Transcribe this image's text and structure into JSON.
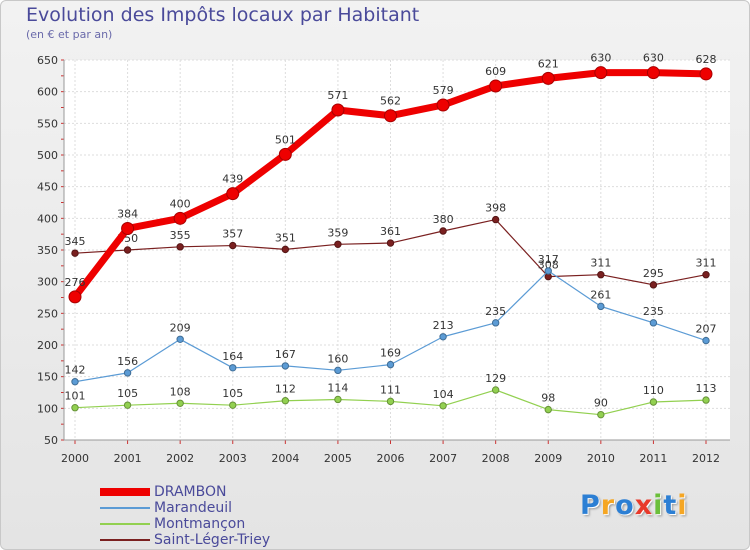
{
  "header": {
    "title": "Evolution des Impôts locaux par Habitant",
    "subtitle": "(en € et par an)"
  },
  "logo": {
    "text": "Proxiti",
    "letter_colors": [
      "#2c7fd4",
      "#f5a623",
      "#2c7fd4",
      "#e8392a",
      "#6bbf3a",
      "#2c7fd4",
      "#f5a623"
    ]
  },
  "chart_data": {
    "type": "line",
    "categories": [
      "2000",
      "2001",
      "2002",
      "2003",
      "2004",
      "2005",
      "2006",
      "2007",
      "2008",
      "2009",
      "2010",
      "2011",
      "2012"
    ],
    "ylim": [
      50,
      650
    ],
    "yticks": [
      50,
      100,
      150,
      200,
      250,
      300,
      350,
      400,
      450,
      500,
      550,
      600,
      650
    ],
    "grid": true,
    "legend_position": "bottom-left",
    "series": [
      {
        "name": "Saint-Léger-Triey",
        "color": "#7a2020",
        "emphasis": false,
        "values": [
          345,
          350,
          355,
          357,
          351,
          359,
          361,
          380,
          398,
          308,
          311,
          295,
          311
        ]
      },
      {
        "name": "Marandeuil",
        "color": "#5b9bd5",
        "emphasis": false,
        "values": [
          142,
          156,
          209,
          164,
          167,
          160,
          169,
          213,
          235,
          317,
          261,
          235,
          207
        ]
      },
      {
        "name": "Montmançon",
        "color": "#92d050",
        "emphasis": false,
        "values": [
          101,
          105,
          108,
          105,
          112,
          114,
          111,
          104,
          129,
          98,
          90,
          110,
          113
        ]
      },
      {
        "name": "DRAMBON",
        "color": "#ee0000",
        "emphasis": true,
        "values": [
          276,
          384,
          400,
          439,
          501,
          571,
          562,
          579,
          609,
          621,
          630,
          630,
          628
        ]
      }
    ],
    "legend_order": [
      "DRAMBON",
      "Marandeuil",
      "Montmançon",
      "Saint-Léger-Triey"
    ]
  }
}
